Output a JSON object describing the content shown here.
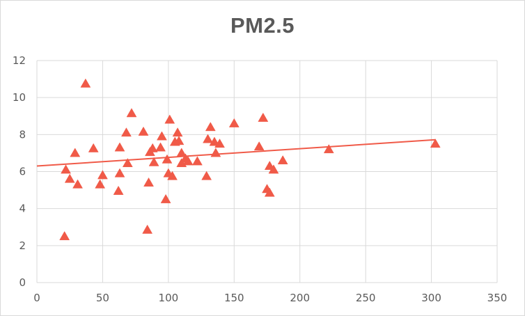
{
  "chart_data": {
    "type": "scatter",
    "title": "PM2.5",
    "xlabel": "",
    "ylabel": "",
    "xlim": [
      0,
      350
    ],
    "ylim": [
      0,
      12
    ],
    "x_ticks": [
      "0",
      "50",
      "100",
      "150",
      "200",
      "250",
      "300",
      "350"
    ],
    "y_ticks": [
      "0",
      "2",
      "4",
      "6",
      "8",
      "10",
      "12"
    ],
    "grid": "vertical and horizontal",
    "legend": "none",
    "marker": "triangle",
    "marker_color": "#f05a48",
    "trendline": {
      "type": "linear",
      "x": [
        0,
        303
      ],
      "y": [
        6.3,
        7.72
      ],
      "color": "#f05a48"
    },
    "series": [
      {
        "points": [
          [
            21,
            2.5
          ],
          [
            22,
            6.1
          ],
          [
            25,
            5.6
          ],
          [
            29,
            7.0
          ],
          [
            31,
            5.3
          ],
          [
            37,
            10.75
          ],
          [
            43,
            7.25
          ],
          [
            48,
            5.3
          ],
          [
            50,
            5.8
          ],
          [
            62,
            4.95
          ],
          [
            63,
            7.3
          ],
          [
            63,
            5.9
          ],
          [
            68,
            8.1
          ],
          [
            69,
            6.45
          ],
          [
            72,
            9.15
          ],
          [
            81,
            8.15
          ],
          [
            84,
            2.85
          ],
          [
            85,
            5.4
          ],
          [
            86,
            7.05
          ],
          [
            88,
            7.25
          ],
          [
            89,
            6.5
          ],
          [
            94,
            7.3
          ],
          [
            95,
            7.9
          ],
          [
            98,
            4.5
          ],
          [
            99,
            6.65
          ],
          [
            101,
            8.8
          ],
          [
            100,
            5.9
          ],
          [
            103,
            5.75
          ],
          [
            105,
            7.6
          ],
          [
            107,
            8.1
          ],
          [
            108,
            7.65
          ],
          [
            110,
            7.0
          ],
          [
            110,
            6.45
          ],
          [
            113,
            6.7
          ],
          [
            115,
            6.55
          ],
          [
            122,
            6.55
          ],
          [
            129,
            5.75
          ],
          [
            130,
            7.75
          ],
          [
            132,
            8.4
          ],
          [
            135,
            7.6
          ],
          [
            136,
            7.0
          ],
          [
            139,
            7.5
          ],
          [
            150,
            8.6
          ],
          [
            169,
            7.35
          ],
          [
            172,
            8.9
          ],
          [
            175,
            5.05
          ],
          [
            177,
            6.3
          ],
          [
            177,
            4.85
          ],
          [
            180,
            6.1
          ],
          [
            187,
            6.6
          ],
          [
            222,
            7.2
          ],
          [
            303,
            7.5
          ]
        ]
      }
    ]
  }
}
